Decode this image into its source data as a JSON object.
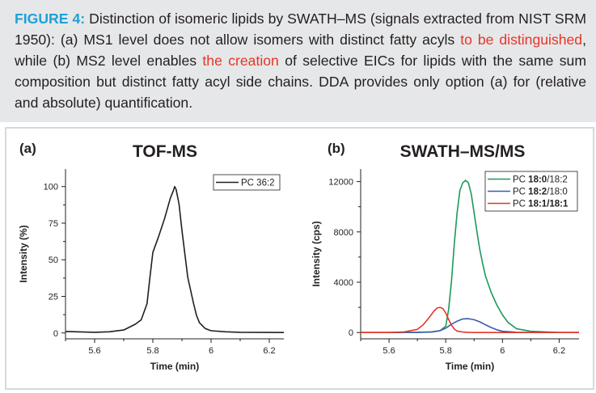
{
  "caption": {
    "label": "FIGURE 4:",
    "seg1": " Distinction of isomeric lipids by SWATH–MS (signals extracted from NIST SRM 1950): (a) MS1 level does not allow isomers with distinct fatty acyls ",
    "hl1": "to be distinguished",
    "seg2": ", while (b) MS2 level enables ",
    "hl2": "the creation",
    "seg3": " of selective EICs for lipids with the same sum composition but distinct fatty acyl side chains. DDA provides only option (a) for (relative and absolute) quantification."
  },
  "colors": {
    "label": "#1ea0d7",
    "highlight": "#e63528",
    "caption_bg": "#e6e7e8"
  },
  "chart_data": [
    {
      "panel": "(a)",
      "type": "line",
      "title": "TOF-MS",
      "xlabel": "Time (min)",
      "ylabel": "Intensity (%)",
      "xlim": [
        5.5,
        6.25
      ],
      "ylim": [
        -4,
        112
      ],
      "xticks": [
        5.6,
        5.8,
        6,
        6.2
      ],
      "xtick_labels": [
        "5.6",
        "5.8",
        "6",
        "6.2"
      ],
      "yticks": [
        0,
        25,
        50,
        75,
        100
      ],
      "ytick_labels": [
        "0",
        "25",
        "50",
        "75",
        "100"
      ],
      "legend_position": "top-right",
      "series": [
        {
          "name": "PC 36:2",
          "color": "#231f20",
          "x": [
            5.5,
            5.6,
            5.65,
            5.7,
            5.72,
            5.74,
            5.76,
            5.78,
            5.79,
            5.8,
            5.82,
            5.84,
            5.86,
            5.87,
            5.875,
            5.88,
            5.89,
            5.9,
            5.92,
            5.94,
            5.95,
            5.96,
            5.98,
            6.0,
            6.05,
            6.1,
            6.25
          ],
          "y": [
            1,
            0.5,
            0.8,
            2,
            4,
            6,
            9,
            20,
            38,
            55,
            66,
            78,
            92,
            97,
            100,
            98,
            88,
            70,
            38,
            20,
            12,
            7,
            3,
            1.5,
            0.8,
            0.5,
            0.3
          ]
        }
      ]
    },
    {
      "panel": "(b)",
      "type": "line",
      "title": "SWATH–MS/MS",
      "xlabel": "Time (min)",
      "ylabel": "Intensity (cps)",
      "xlim": [
        5.5,
        6.27
      ],
      "ylim": [
        -500,
        13000
      ],
      "xticks": [
        5.6,
        5.8,
        6,
        6.2
      ],
      "xtick_labels": [
        "5.6",
        "5.8",
        "6",
        "6.2"
      ],
      "yticks": [
        0,
        4000,
        8000,
        12000
      ],
      "ytick_labels": [
        "0",
        "4000",
        "8000",
        "12000"
      ],
      "legend_position": "top-right",
      "series": [
        {
          "name": "PC 18:0/18:2",
          "name_prefix": "PC ",
          "name_bold": "18:0",
          "name_rest": "/18:2",
          "color": "#1a9a5c",
          "x": [
            5.5,
            5.6,
            5.7,
            5.75,
            5.78,
            5.8,
            5.81,
            5.82,
            5.83,
            5.84,
            5.85,
            5.86,
            5.87,
            5.88,
            5.89,
            5.9,
            5.91,
            5.92,
            5.93,
            5.94,
            5.96,
            5.98,
            6.0,
            6.02,
            6.05,
            6.1,
            6.15,
            6.2,
            6.27
          ],
          "y": [
            0,
            0,
            20,
            50,
            150,
            500,
            1800,
            4000,
            7000,
            9500,
            11300,
            11900,
            12100,
            11900,
            11000,
            9500,
            8000,
            6600,
            5500,
            4500,
            3200,
            2200,
            1400,
            800,
            300,
            100,
            50,
            0,
            0
          ]
        },
        {
          "name": "PC 18:2/18:0",
          "name_prefix": "PC ",
          "name_bold": "18:2",
          "name_rest": "/18:0",
          "color": "#3d5ba9",
          "x": [
            5.5,
            5.6,
            5.7,
            5.75,
            5.78,
            5.8,
            5.82,
            5.84,
            5.86,
            5.88,
            5.9,
            5.92,
            5.94,
            5.96,
            5.98,
            6.0,
            6.05,
            6.1,
            6.2,
            6.27
          ],
          "y": [
            0,
            0,
            10,
            40,
            150,
            350,
            650,
            900,
            1080,
            1100,
            1020,
            850,
            620,
            400,
            220,
            100,
            20,
            0,
            0,
            0
          ]
        },
        {
          "name": "PC 18:1/18:1",
          "name_prefix": "PC ",
          "name_bold": "18:1/18:1",
          "name_rest": "",
          "color": "#e63528",
          "x": [
            5.5,
            5.6,
            5.65,
            5.7,
            5.72,
            5.74,
            5.76,
            5.77,
            5.78,
            5.79,
            5.8,
            5.81,
            5.82,
            5.83,
            5.84,
            5.86,
            5.88,
            5.9,
            6.0,
            6.27
          ],
          "y": [
            0,
            0,
            40,
            250,
            600,
            1150,
            1750,
            1950,
            2000,
            1900,
            1550,
            1050,
            600,
            280,
            120,
            40,
            10,
            0,
            0,
            0
          ]
        }
      ]
    }
  ]
}
